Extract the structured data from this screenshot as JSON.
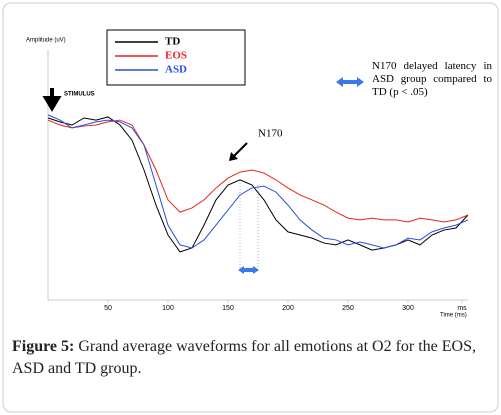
{
  "chart_data": {
    "type": "line",
    "y_label": "Amplitude (uV)",
    "x_label": "Time (ms)",
    "annotations": {
      "stimulus": "STIMULUS",
      "peak": "N170",
      "note": "N170 delayed latency in ASD group compared to TD (p < .05)"
    },
    "x": [
      0,
      10,
      20,
      30,
      40,
      50,
      60,
      70,
      80,
      90,
      100,
      110,
      120,
      130,
      140,
      150,
      160,
      170,
      180,
      190,
      200,
      210,
      220,
      230,
      240,
      250,
      260,
      270,
      280,
      290,
      300,
      310,
      320,
      330,
      340,
      350
    ],
    "xlim": [
      0,
      350
    ],
    "xticks": [
      50,
      100,
      150,
      200,
      250,
      300,
      {
        "value": 345,
        "label": "ms"
      }
    ],
    "ylim": [
      0,
      100
    ],
    "series": [
      {
        "name": "TD",
        "color": "#000000",
        "values": [
          70,
          68.5,
          67.3,
          70,
          69.2,
          70.4,
          67.3,
          61.5,
          50,
          36.5,
          25,
          18.5,
          20,
          28.8,
          38.5,
          44.2,
          46.2,
          44.2,
          38.5,
          30.8,
          26.2,
          25,
          23.8,
          21.9,
          21.2,
          23.1,
          21.2,
          19.2,
          20,
          21.2,
          23.1,
          21.2,
          25,
          26.9,
          27.7,
          32.7
        ]
      },
      {
        "name": "EOS",
        "color": "#e8251f",
        "values": [
          69.2,
          67.3,
          66.2,
          66.9,
          67.3,
          68.5,
          69.2,
          67.3,
          59.6,
          50,
          38.5,
          33.8,
          35.4,
          38.5,
          43.1,
          46.9,
          49.2,
          50,
          48.8,
          46.2,
          43.1,
          40.4,
          38.5,
          36.5,
          33.8,
          31.5,
          30.8,
          31.5,
          30.8,
          30.8,
          30,
          31.5,
          30.8,
          30,
          30.8,
          32.7
        ]
      },
      {
        "name": "ASD",
        "color": "#2a4ee0",
        "values": [
          71.2,
          69.2,
          66.2,
          67.3,
          68.5,
          69.2,
          68.5,
          66.2,
          59.6,
          44.2,
          28.8,
          21.2,
          20,
          23.1,
          28.8,
          34.6,
          40.4,
          43.1,
          43.8,
          41.5,
          36.5,
          30.8,
          26.9,
          23.8,
          23.1,
          21.2,
          22.3,
          21.2,
          20,
          21.2,
          23.8,
          23.1,
          26.2,
          27.7,
          28.8,
          30.8
        ]
      }
    ]
  },
  "caption": {
    "label": "Figure 5:",
    "text": "Grand average waveforms for all emotions at O2 for the EOS, ASD and TD group."
  }
}
